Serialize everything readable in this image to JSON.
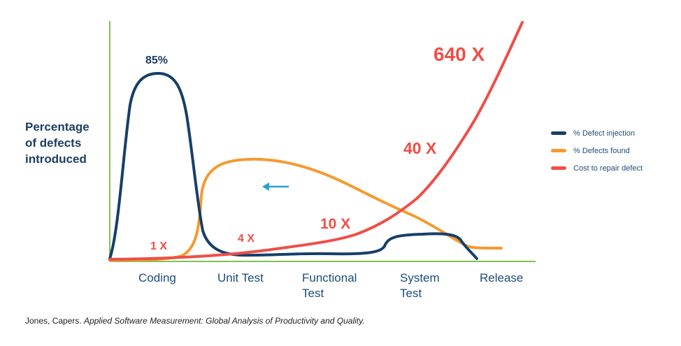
{
  "chart_data": {
    "type": "line",
    "ylabel_lines": [
      "Percentage",
      "of defects",
      "introduced"
    ],
    "categories": [
      {
        "lines": [
          "Coding"
        ]
      },
      {
        "lines": [
          "Unit Test"
        ]
      },
      {
        "lines": [
          "Functional",
          "Test"
        ]
      },
      {
        "lines": [
          "System",
          "Test"
        ]
      },
      {
        "lines": [
          "Release"
        ]
      }
    ],
    "series": [
      {
        "name": "% Defect injection",
        "color": "#163f69"
      },
      {
        "name": "% Defects found",
        "color": "#f59a30"
      },
      {
        "name": "Cost to repair defect",
        "color": "#ef4e48"
      }
    ],
    "annotations": [
      {
        "text": "85%",
        "color": "#1c3d63"
      },
      {
        "text": "1 X",
        "color": "#ef4e48"
      },
      {
        "text": "4 X",
        "color": "#ef4e48"
      },
      {
        "text": "10 X",
        "color": "#ef4e48"
      },
      {
        "text": "40 X",
        "color": "#ef4e48"
      },
      {
        "text": "640 X",
        "color": "#ef4e48"
      }
    ],
    "arrow_color": "#2a9fd8",
    "axis_color": "#7cc253",
    "grid": false,
    "legend_position": "right"
  },
  "source": {
    "prefix": "Jones, Capers. ",
    "title": "Applied Software Measurement: Global Analysis of Productivity and Quality."
  }
}
